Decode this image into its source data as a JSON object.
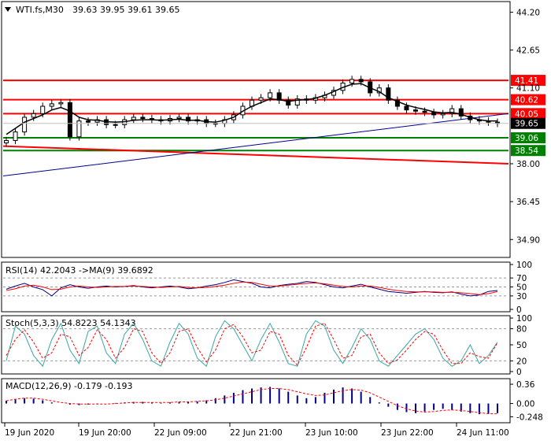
{
  "header": {
    "symbol": "WTI.fs,M30",
    "ohlc": "39.63 39.95 39.61 39.65"
  },
  "colors": {
    "candle": "#000000",
    "ma": "#000000",
    "resistance": "#ff0000",
    "support": "#008000",
    "trendline": "#00008b",
    "current_price_bg": "#000000",
    "rsi": "#000080",
    "rsi_ma": "#ff0000",
    "stoch_main": "#3aa6a6",
    "stoch_signal": "#ff0000",
    "macd_hist": "#00008b",
    "macd_signal": "#ff0000"
  },
  "chart_data": {
    "type": "candlestick",
    "ylim": [
      34.2,
      44.6
    ],
    "y_ticks": [
      "44.20",
      "42.65",
      "41.10",
      "38.00",
      "36.45",
      "34.90"
    ],
    "x_ticks": [
      "19 Jun 2020",
      "19 Jun 20:00",
      "22 Jun 09:00",
      "22 Jun 21:00",
      "23 Jun 10:00",
      "23 Jun 22:00",
      "24 Jun 11:00"
    ],
    "current_price": "39.65",
    "levels": [
      {
        "value": 41.41,
        "label": "41.41",
        "kind": "resistance"
      },
      {
        "value": 40.62,
        "label": "40.62",
        "kind": "resistance"
      },
      {
        "value": 40.05,
        "label": "40.05",
        "kind": "resistance"
      },
      {
        "value": 39.06,
        "label": "39.06",
        "kind": "support"
      },
      {
        "value": 38.54,
        "label": "38.54",
        "kind": "support"
      }
    ],
    "trendlines": [
      {
        "kind": "resistance",
        "from": 38.72,
        "to": 38.0
      },
      {
        "kind": "trend",
        "from": 37.5,
        "to": 40.05
      }
    ],
    "close_path": [
      38.95,
      39.3,
      39.9,
      40.05,
      40.35,
      40.45,
      40.5,
      39.1,
      39.75,
      39.7,
      39.8,
      39.6,
      39.6,
      39.8,
      39.9,
      39.85,
      39.8,
      39.75,
      39.85,
      39.9,
      39.75,
      39.8,
      39.65,
      39.65,
      39.8,
      40.0,
      40.35,
      40.6,
      40.7,
      40.9,
      40.6,
      40.4,
      40.65,
      40.6,
      40.7,
      40.8,
      41.0,
      41.3,
      41.45,
      41.35,
      40.9,
      41.1,
      40.6,
      40.35,
      40.2,
      40.15,
      40.1,
      40.0,
      40.05,
      40.25,
      39.95,
      39.8,
      39.75,
      39.7,
      39.65
    ],
    "ma_path": [
      39.2,
      39.45,
      39.7,
      39.85,
      40.0,
      40.2,
      40.3,
      40.15,
      39.9,
      39.8,
      39.78,
      39.72,
      39.7,
      39.72,
      39.78,
      39.8,
      39.8,
      39.78,
      39.8,
      39.82,
      39.78,
      39.78,
      39.72,
      39.7,
      39.78,
      39.9,
      40.15,
      40.35,
      40.5,
      40.65,
      40.62,
      40.55,
      40.6,
      40.62,
      40.68,
      40.8,
      40.95,
      41.12,
      41.25,
      41.28,
      41.1,
      40.95,
      40.7,
      40.55,
      40.4,
      40.3,
      40.22,
      40.12,
      40.08,
      40.1,
      40.02,
      39.9,
      39.8,
      39.75,
      39.75
    ],
    "panels": {
      "rsi": {
        "title": "RSI(14) 42.2043   ->MA(9) 39.6892",
        "ylim": [
          0,
          100
        ],
        "ticks": [
          "100",
          "70",
          "50",
          "30",
          "0"
        ],
        "levels": [
          70,
          50,
          30
        ],
        "rsi": [
          45,
          52,
          58,
          50,
          44,
          30,
          48,
          55,
          50,
          47,
          50,
          52,
          50,
          51,
          53,
          50,
          48,
          50,
          52,
          50,
          46,
          48,
          52,
          55,
          60,
          66,
          62,
          58,
          50,
          48,
          53,
          56,
          58,
          62,
          60,
          55,
          50,
          48,
          52,
          56,
          50,
          45,
          40,
          38,
          36,
          38,
          40,
          38,
          37,
          39,
          34,
          30,
          32,
          40,
          42
        ],
        "ma": [
          42,
          46,
          52,
          54,
          50,
          44,
          45,
          50,
          52,
          50,
          49,
          50,
          51,
          51,
          52,
          51,
          50,
          49,
          50,
          51,
          49,
          48,
          49,
          51,
          54,
          58,
          61,
          60,
          56,
          52,
          52,
          54,
          56,
          58,
          59,
          57,
          54,
          51,
          50,
          52,
          52,
          49,
          45,
          42,
          40,
          39,
          39,
          39,
          38,
          38,
          37,
          35,
          33,
          35,
          39.7
        ]
      },
      "stoch": {
        "title": "Stoch(5,3,3) 54.8223 54.1343",
        "ylim": [
          0,
          100
        ],
        "ticks": [
          "100",
          "80",
          "50",
          "20",
          "0"
        ],
        "levels": [
          80,
          20
        ],
        "main": [
          20,
          85,
          70,
          30,
          10,
          60,
          90,
          40,
          15,
          75,
          85,
          35,
          15,
          70,
          90,
          60,
          20,
          10,
          55,
          90,
          70,
          25,
          10,
          65,
          95,
          80,
          50,
          20,
          60,
          90,
          55,
          15,
          10,
          70,
          95,
          85,
          40,
          15,
          45,
          80,
          60,
          20,
          10,
          30,
          50,
          70,
          80,
          60,
          25,
          10,
          20,
          50,
          15,
          30,
          55
        ],
        "signal": [
          30,
          60,
          78,
          55,
          25,
          35,
          70,
          65,
          30,
          45,
          78,
          60,
          25,
          45,
          80,
          75,
          35,
          15,
          35,
          75,
          80,
          45,
          18,
          40,
          80,
          88,
          65,
          35,
          40,
          75,
          70,
          30,
          12,
          45,
          85,
          90,
          60,
          25,
          30,
          65,
          70,
          35,
          15,
          22,
          40,
          60,
          75,
          70,
          40,
          15,
          15,
          35,
          28,
          25,
          54
        ]
      },
      "macd": {
        "title": "MACD(12,26,9) -0.179 -0.193",
        "ylim": [
          -0.33,
          0.42
        ],
        "ticks": [
          "0.36",
          "0.00",
          "-0.248"
        ],
        "hist": [
          0.05,
          0.08,
          0.1,
          0.09,
          0.06,
          0.02,
          0.0,
          -0.02,
          -0.03,
          -0.02,
          -0.01,
          0.0,
          0.01,
          0.02,
          0.03,
          0.03,
          0.02,
          0.01,
          0.02,
          0.03,
          0.03,
          0.04,
          0.06,
          0.1,
          0.15,
          0.2,
          0.25,
          0.28,
          0.3,
          0.31,
          0.28,
          0.22,
          0.15,
          0.1,
          0.12,
          0.2,
          0.26,
          0.3,
          0.28,
          0.22,
          0.12,
          0.02,
          -0.06,
          -0.12,
          -0.16,
          -0.18,
          -0.15,
          -0.12,
          -0.1,
          -0.12,
          -0.15,
          -0.18,
          -0.2,
          -0.19,
          -0.18
        ],
        "signal": [
          0.05,
          0.08,
          0.1,
          0.1,
          0.08,
          0.05,
          0.02,
          0.0,
          -0.01,
          -0.01,
          -0.01,
          -0.01,
          0.0,
          0.01,
          0.02,
          0.02,
          0.02,
          0.02,
          0.02,
          0.03,
          0.03,
          0.04,
          0.05,
          0.07,
          0.1,
          0.14,
          0.18,
          0.22,
          0.26,
          0.28,
          0.28,
          0.26,
          0.22,
          0.18,
          0.15,
          0.16,
          0.2,
          0.24,
          0.26,
          0.25,
          0.2,
          0.12,
          0.04,
          -0.04,
          -0.1,
          -0.14,
          -0.16,
          -0.15,
          -0.13,
          -0.12,
          -0.13,
          -0.15,
          -0.17,
          -0.19,
          -0.193
        ]
      }
    }
  }
}
